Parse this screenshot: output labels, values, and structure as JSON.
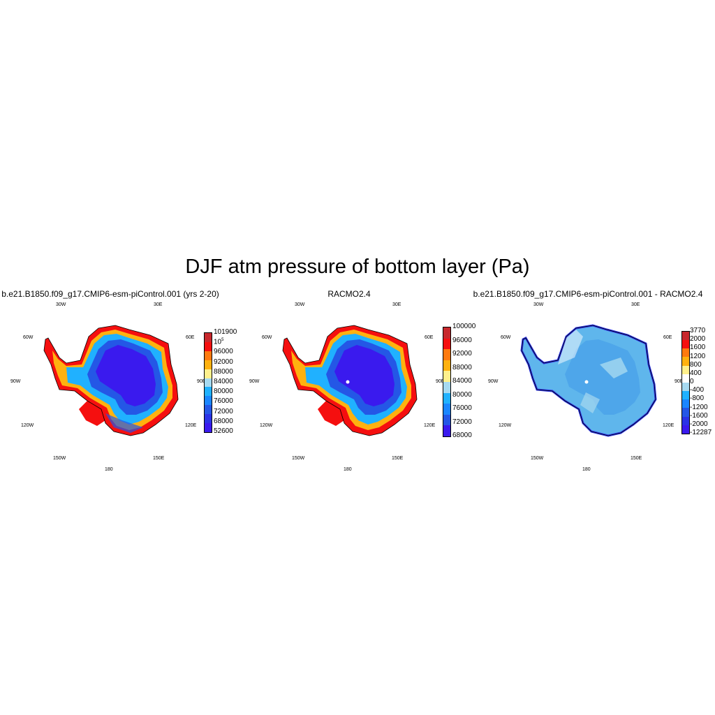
{
  "main_title": "DJF atm pressure of bottom layer (Pa)",
  "panels": [
    {
      "title": "b.e21.B1850.f09_g17.CMIP6-esm-piControl.001 (yrs 2-20)",
      "colorbar": {
        "colors": [
          "#c8282d",
          "#f50f0f",
          "#ff7a0f",
          "#ffb10f",
          "#fff08c",
          "#a6d9f0",
          "#20b1ff",
          "#1a86ff",
          "#2457e6",
          "#2b33e6",
          "#3a1aee"
        ],
        "labels": [
          "101900",
          "10^5",
          "96000",
          "92000",
          "88000",
          "84000",
          "80000",
          "76000",
          "72000",
          "68000",
          "52600"
        ]
      }
    },
    {
      "title": "RACMO2.4",
      "colorbar": {
        "colors": [
          "#c8282d",
          "#f50f0f",
          "#ff7a0f",
          "#ffb10f",
          "#fff08c",
          "#a6d9f0",
          "#20b1ff",
          "#1a86ff",
          "#2457e6",
          "#3a1aee"
        ],
        "labels": [
          "100000",
          "96000",
          "92000",
          "88000",
          "84000",
          "80000",
          "76000",
          "72000",
          "68000"
        ]
      }
    },
    {
      "title": "b.e21.B1850.f09_g17.CMIP6-esm-piControl.001 - RACMO2.4",
      "colorbar": {
        "colors": [
          "#c8282d",
          "#f50f0f",
          "#ff7a0f",
          "#ffb10f",
          "#fff08c",
          "#ffffff",
          "#a6d9f0",
          "#20b1ff",
          "#1a86ff",
          "#2457e6",
          "#2b33e6",
          "#3a1aee"
        ],
        "labels": [
          "3770",
          "2000",
          "1600",
          "1200",
          "800",
          "400",
          "0",
          "-400",
          "-800",
          "-1200",
          "-1600",
          "-2000",
          "-12287"
        ]
      }
    }
  ],
  "lon_labels": {
    "w30": "30W",
    "e30": "30E",
    "w60": "60W",
    "e60": "60E",
    "w90": "90W",
    "e90": "90E",
    "w120": "120W",
    "e120": "120E",
    "w150": "150W",
    "e150": "150E",
    "s180": "180"
  }
}
